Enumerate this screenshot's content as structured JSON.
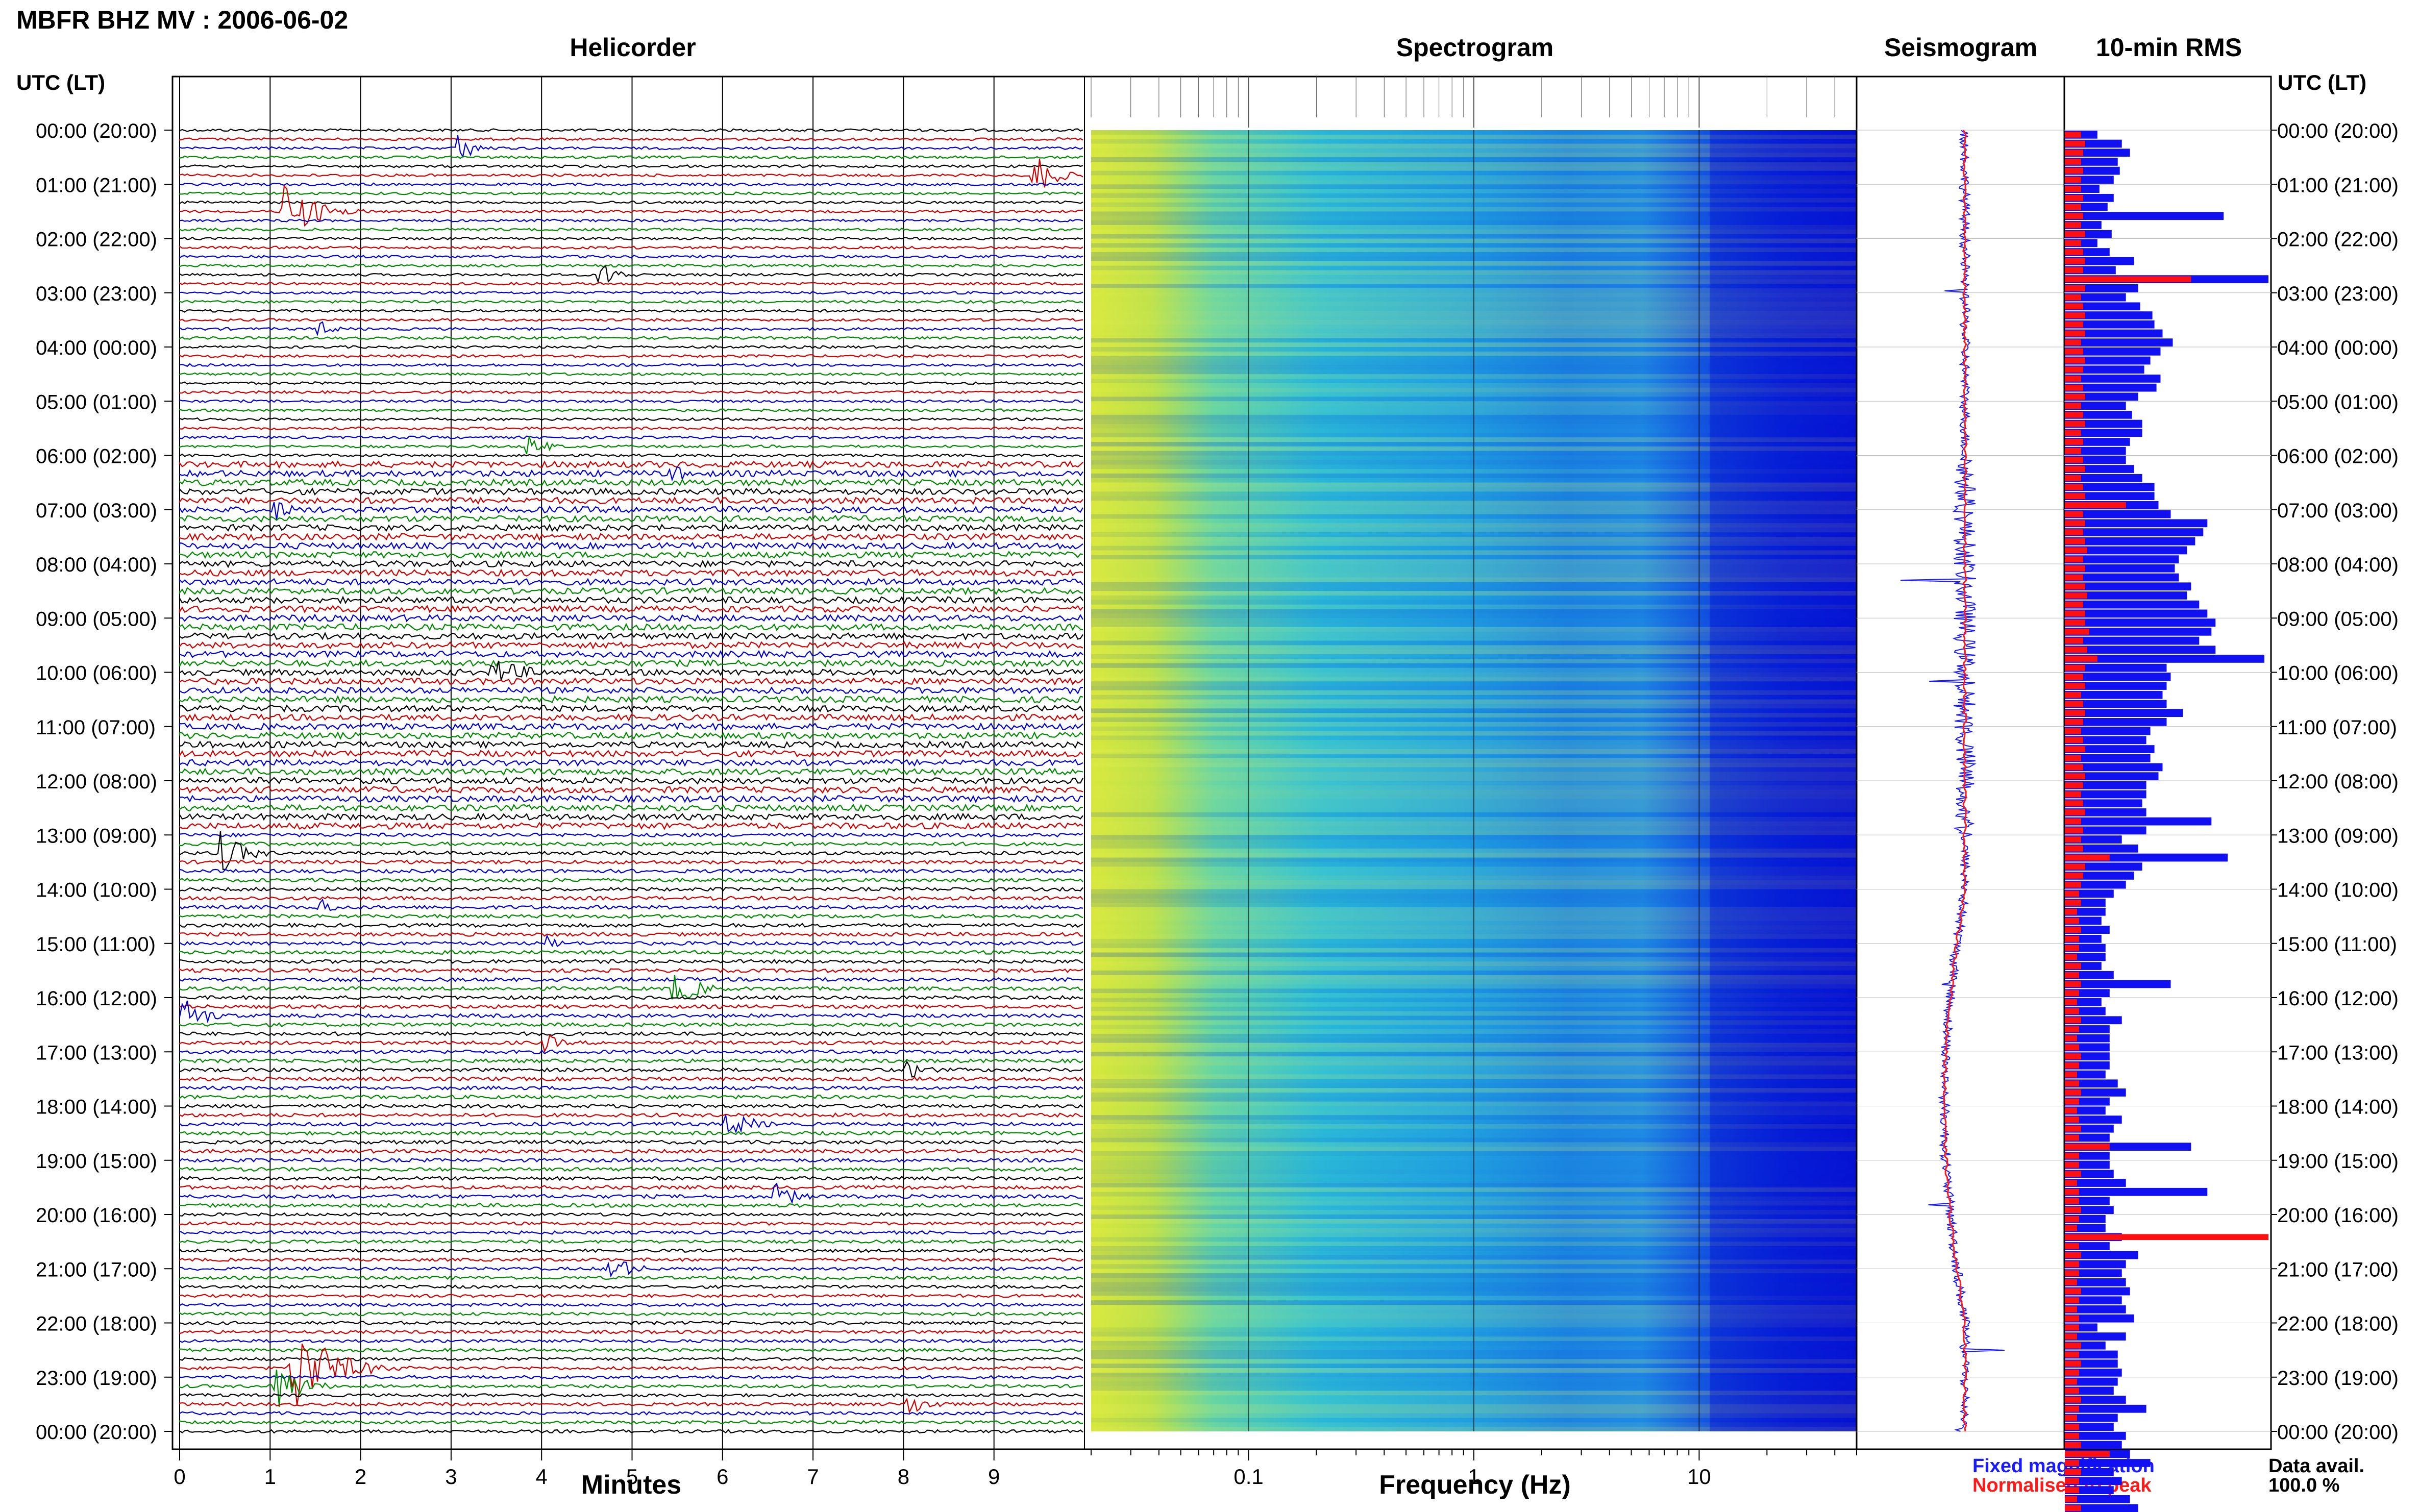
{
  "title": "MBFR BHZ MV : 2006-06-02",
  "utc_header": "UTC (LT)",
  "panels": {
    "helicorder": "Helicorder",
    "spectrogram": "Spectrogram",
    "seismogram": "Seismogram",
    "rms": "10-min RMS"
  },
  "legend": {
    "fixed": "Fixed magnification",
    "normalised": "Normalised to peak"
  },
  "data_avail": {
    "label": "Data avail.",
    "value": "100.0 %"
  },
  "colors": {
    "trace": [
      "#000000",
      "#cc0000",
      "#0000cc",
      "#008800"
    ],
    "fixed": "#1a1aff",
    "normalised": "#ff1a1a"
  },
  "chart_data": [
    {
      "type": "line",
      "name": "helicorder",
      "title": "Helicorder",
      "xlabel": "Minutes",
      "x_ticks": [
        0,
        1,
        2,
        3,
        4,
        5,
        6,
        7,
        8,
        9
      ],
      "xlim": [
        0,
        10
      ],
      "traces_per_hour": 6,
      "time_labels": [
        "00:00 (20:00)",
        "01:00 (21:00)",
        "02:00 (22:00)",
        "03:00 (23:00)",
        "04:00 (00:00)",
        "05:00 (01:00)",
        "06:00 (02:00)",
        "07:00 (03:00)",
        "08:00 (04:00)",
        "09:00 (05:00)",
        "10:00 (06:00)",
        "11:00 (07:00)",
        "12:00 (08:00)",
        "13:00 (09:00)",
        "14:00 (10:00)",
        "15:00 (11:00)",
        "16:00 (12:00)",
        "17:00 (13:00)",
        "18:00 (14:00)",
        "19:00 (15:00)",
        "20:00 (16:00)",
        "21:00 (17:00)",
        "22:00 (18:00)",
        "23:00 (19:00)",
        "00:00 (20:00)"
      ]
    },
    {
      "type": "heatmap",
      "name": "spectrogram",
      "title": "Spectrogram",
      "xlabel": "Frequency (Hz)",
      "x_scale": "log",
      "xlim": [
        0.02,
        50
      ],
      "x_tick_labels": [
        "0.1",
        "1",
        "10"
      ],
      "x_tick_values": [
        0.1,
        1,
        10
      ]
    },
    {
      "type": "line",
      "name": "seismogram",
      "title": "Seismogram",
      "series": [
        {
          "name": "Fixed magnification"
        },
        {
          "name": "Normalised to peak"
        }
      ]
    },
    {
      "type": "bar",
      "name": "rms",
      "title": "10-min RMS",
      "orientation": "horizontal",
      "series": [
        {
          "name": "Fixed magnification",
          "values": [
            0.16,
            0.28,
            0.32,
            0.26,
            0.27,
            0.24,
            0.17,
            0.24,
            0.21,
            0.78,
            0.18,
            0.23,
            0.16,
            0.22,
            0.34,
            0.25,
            1.0,
            0.36,
            0.3,
            0.37,
            0.43,
            0.44,
            0.48,
            0.53,
            0.47,
            0.42,
            0.39,
            0.47,
            0.45,
            0.36,
            0.3,
            0.33,
            0.38,
            0.38,
            0.32,
            0.3,
            0.3,
            0.34,
            0.38,
            0.44,
            0.44,
            0.46,
            0.52,
            0.7,
            0.68,
            0.64,
            0.6,
            0.56,
            0.54,
            0.56,
            0.62,
            0.6,
            0.66,
            0.7,
            0.74,
            0.72,
            0.66,
            0.74,
            0.98,
            0.5,
            0.52,
            0.5,
            0.48,
            0.5,
            0.58,
            0.5,
            0.42,
            0.4,
            0.44,
            0.42,
            0.48,
            0.46,
            0.4,
            0.4,
            0.38,
            0.4,
            0.72,
            0.4,
            0.28,
            0.36,
            0.8,
            0.38,
            0.34,
            0.3,
            0.24,
            0.2,
            0.2,
            0.18,
            0.22,
            0.18,
            0.2,
            0.2,
            0.18,
            0.24,
            0.52,
            0.22,
            0.18,
            0.2,
            0.28,
            0.22,
            0.22,
            0.22,
            0.22,
            0.22,
            0.2,
            0.26,
            0.3,
            0.22,
            0.2,
            0.28,
            0.24,
            0.22,
            0.62,
            0.22,
            0.22,
            0.24,
            0.3,
            0.7,
            0.22,
            0.24,
            0.2,
            0.2,
            0.28,
            0.22,
            0.36,
            0.3,
            0.28,
            0.3,
            0.32,
            0.28,
            0.3,
            0.34,
            0.16,
            0.3,
            0.2,
            0.26,
            0.26,
            0.28,
            0.26,
            0.24,
            0.3,
            0.4,
            0.26,
            0.24,
            0.3,
            0.28,
            0.32,
            0.42,
            0.24,
            0.28,
            0.24,
            0.32,
            0.36,
            0.42,
            0.24,
            0.28
          ]
        },
        {
          "name": "Normalised to peak",
          "values": [
            0.08,
            0.1,
            0.09,
            0.08,
            0.09,
            0.08,
            0.08,
            0.09,
            0.08,
            0.09,
            0.08,
            0.1,
            0.08,
            0.09,
            0.1,
            0.09,
            0.62,
            0.1,
            0.08,
            0.09,
            0.1,
            0.09,
            0.1,
            0.08,
            0.09,
            0.1,
            0.09,
            0.08,
            0.09,
            0.1,
            0.08,
            0.09,
            0.1,
            0.08,
            0.09,
            0.08,
            0.09,
            0.1,
            0.08,
            0.09,
            0.1,
            0.3,
            0.09,
            0.1,
            0.09,
            0.1,
            0.11,
            0.09,
            0.1,
            0.09,
            0.1,
            0.11,
            0.09,
            0.1,
            0.1,
            0.12,
            0.09,
            0.11,
            0.16,
            0.1,
            0.09,
            0.1,
            0.08,
            0.09,
            0.1,
            0.09,
            0.08,
            0.09,
            0.1,
            0.08,
            0.09,
            0.1,
            0.09,
            0.08,
            0.09,
            0.1,
            0.08,
            0.09,
            0.08,
            0.09,
            0.22,
            0.1,
            0.09,
            0.08,
            0.07,
            0.08,
            0.06,
            0.07,
            0.08,
            0.07,
            0.07,
            0.06,
            0.08,
            0.07,
            0.08,
            0.07,
            0.06,
            0.07,
            0.08,
            0.07,
            0.06,
            0.07,
            0.08,
            0.07,
            0.06,
            0.07,
            0.08,
            0.07,
            0.06,
            0.07,
            0.08,
            0.07,
            0.22,
            0.07,
            0.07,
            0.08,
            0.06,
            0.07,
            0.07,
            0.08,
            0.07,
            0.06,
            1.0,
            0.07,
            0.08,
            0.07,
            0.07,
            0.06,
            0.08,
            0.07,
            0.06,
            0.07,
            0.07,
            0.06,
            0.08,
            0.07,
            0.08,
            0.07,
            0.06,
            0.07,
            0.08,
            0.07,
            0.06,
            0.07,
            0.07,
            0.08,
            0.22,
            0.07,
            0.08,
            0.07,
            0.07,
            0.06,
            0.08,
            0.07,
            0.06,
            0.07
          ]
        }
      ]
    }
  ]
}
